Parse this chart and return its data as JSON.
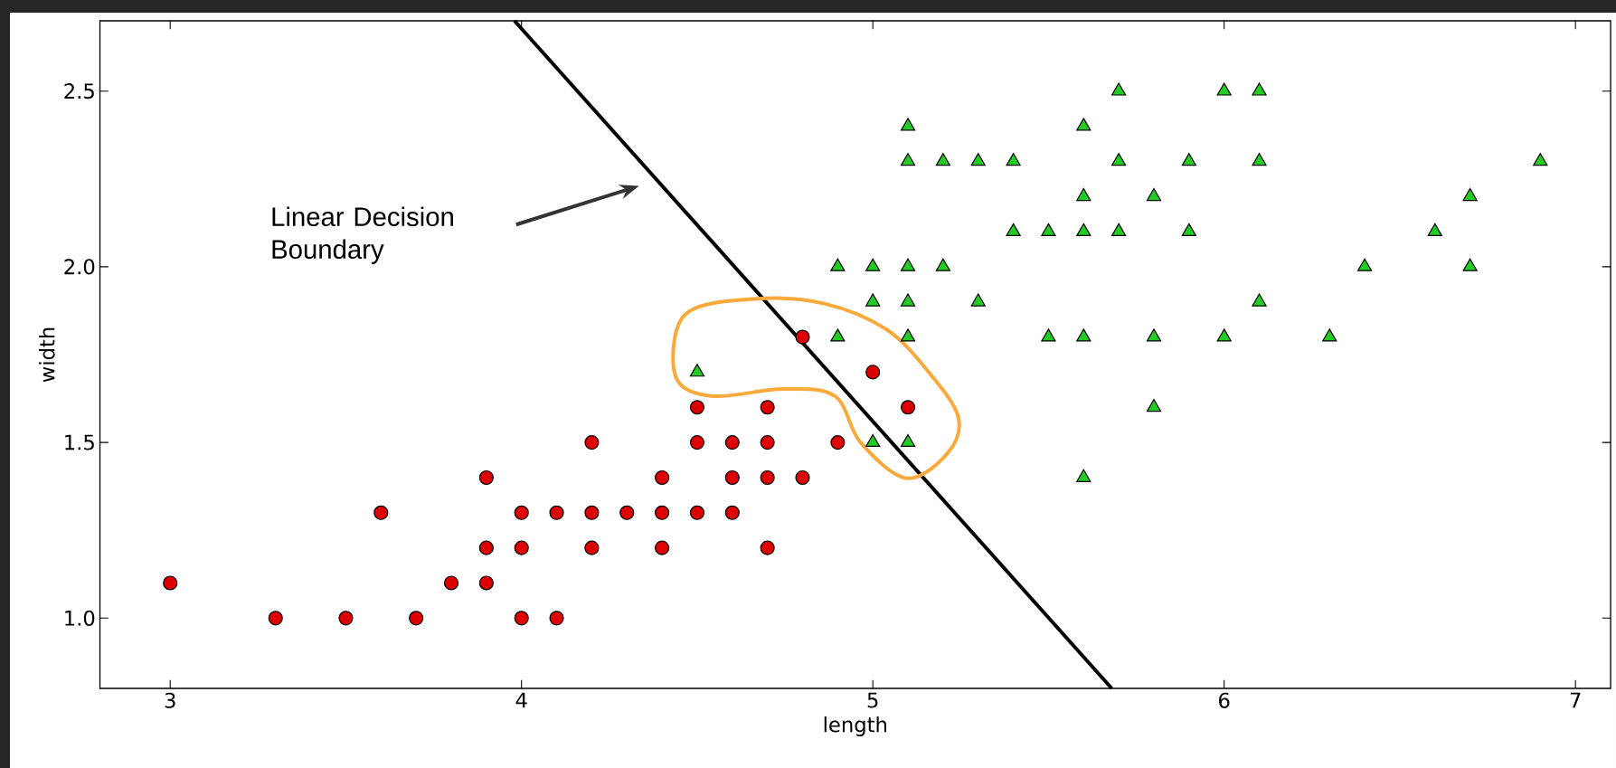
{
  "chart_data": {
    "type": "scatter",
    "xlabel": "length",
    "ylabel": "width",
    "xlim": [
      2.8,
      7.1
    ],
    "ylim": [
      0.8,
      2.7
    ],
    "xticks": [
      3,
      4,
      5,
      6,
      7
    ],
    "yticks": [
      {
        "value": 1,
        "label": "1.0"
      },
      1.5,
      {
        "value": 2,
        "label": "2.0"
      },
      2.5
    ],
    "series": [
      {
        "color": "#dd0000",
        "marker": "circle",
        "x": [
          3.0,
          3.3,
          3.5,
          3.6,
          3.7,
          3.8,
          3.9,
          3.9,
          3.9,
          4.0,
          4.0,
          4.0,
          4.1,
          4.1,
          4.2,
          4.2,
          4.2,
          4.3,
          4.4,
          4.4,
          4.4,
          4.5,
          4.5,
          4.5,
          4.6,
          4.6,
          4.6,
          4.7,
          4.7,
          4.7,
          4.7,
          4.8,
          4.8,
          4.9,
          5.0,
          5.1
        ],
        "values": [
          1.1,
          1.0,
          1.0,
          1.3,
          1.0,
          1.1,
          1.4,
          1.2,
          1.1,
          1.3,
          1.2,
          1.0,
          1.3,
          1.0,
          1.5,
          1.3,
          1.2,
          1.3,
          1.4,
          1.3,
          1.2,
          1.6,
          1.5,
          1.3,
          1.5,
          1.4,
          1.3,
          1.6,
          1.5,
          1.4,
          1.2,
          1.8,
          1.4,
          1.5,
          1.7,
          1.6
        ]
      },
      {
        "color": "#22cc22",
        "marker": "triangle",
        "x": [
          4.5,
          4.9,
          4.9,
          5.0,
          5.0,
          5.0,
          5.1,
          5.1,
          5.1,
          5.1,
          5.1,
          5.1,
          5.2,
          5.2,
          5.3,
          5.3,
          5.4,
          5.4,
          5.5,
          5.5,
          5.6,
          5.6,
          5.6,
          5.6,
          5.6,
          5.7,
          5.7,
          5.7,
          5.8,
          5.8,
          5.8,
          5.9,
          5.9,
          6.0,
          6.0,
          6.1,
          6.1,
          6.1,
          6.3,
          6.4,
          6.6,
          6.7,
          6.7,
          6.9
        ],
        "values": [
          1.7,
          2.0,
          1.8,
          2.0,
          1.9,
          1.5,
          2.4,
          2.3,
          2.0,
          1.9,
          1.8,
          1.5,
          2.3,
          2.0,
          2.3,
          1.9,
          2.3,
          2.1,
          2.1,
          1.8,
          2.4,
          2.2,
          2.1,
          1.8,
          1.4,
          2.5,
          2.3,
          2.1,
          2.2,
          1.8,
          1.6,
          2.3,
          2.1,
          2.5,
          1.8,
          2.5,
          2.3,
          1.9,
          1.8,
          2.0,
          2.1,
          2.2,
          2.0,
          2.3
        ]
      },
      {
        "type": "line",
        "color": "#000000",
        "marker": "none",
        "x": [
          3.98,
          5.68
        ],
        "values": [
          2.7,
          0.8
        ]
      }
    ],
    "annotations": [
      "Linear Decision Boundary"
    ]
  }
}
